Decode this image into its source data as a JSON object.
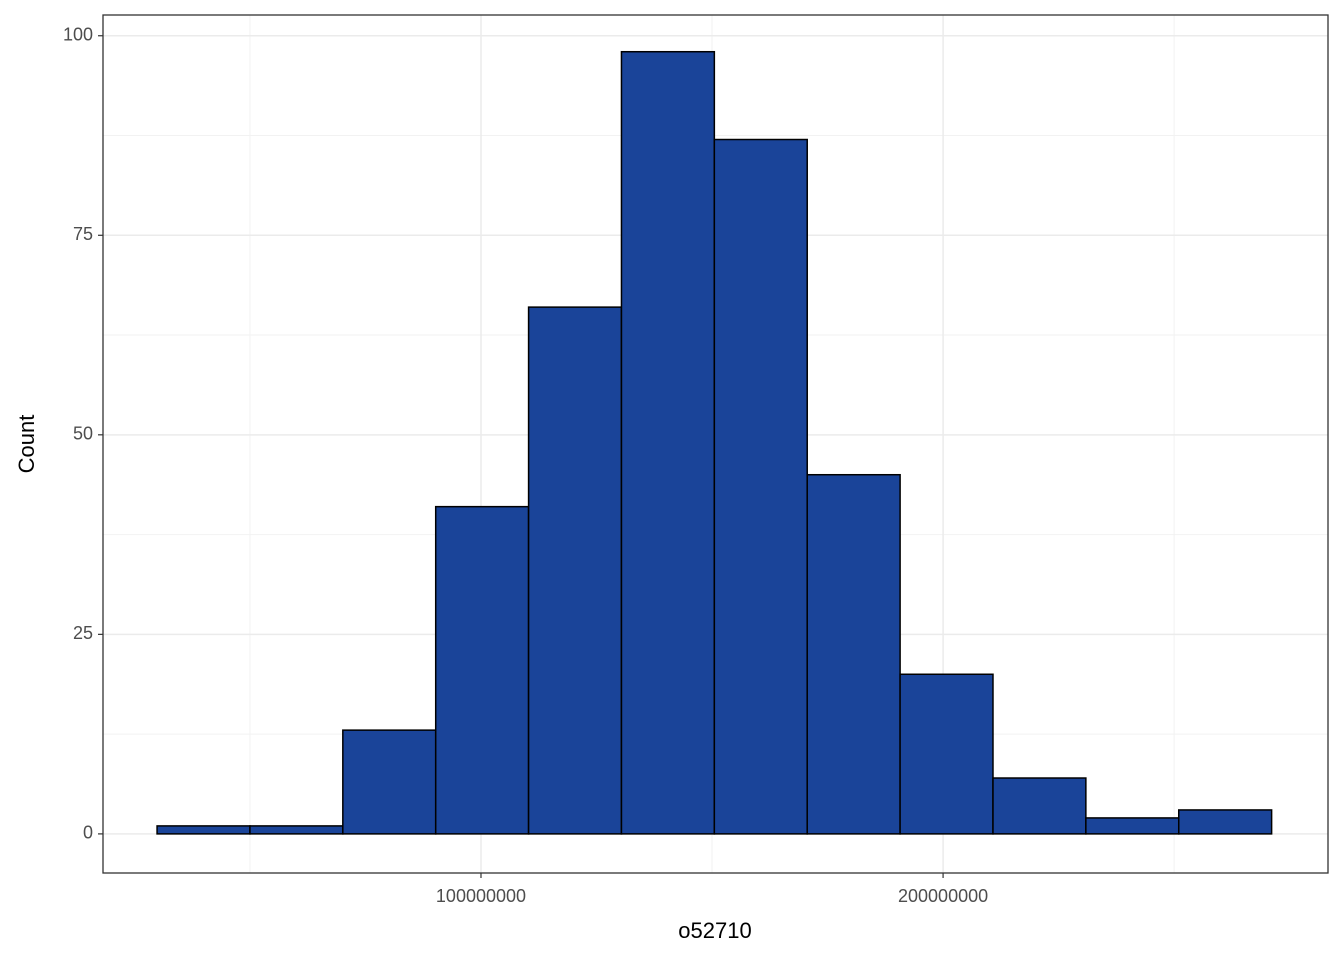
{
  "chart_data": {
    "type": "histogram",
    "x_label": "o52710",
    "y_label": "Count",
    "bins": [
      29900000,
      50000000,
      70100000,
      90200000,
      110300000,
      130400000,
      150500000,
      170600000,
      190700000,
      210800000,
      230900000,
      251000000,
      271100000
    ],
    "values": [
      1,
      1,
      13,
      41,
      66,
      98,
      87,
      45,
      20,
      7,
      2,
      3
    ],
    "color": "#1a4499",
    "edge_color": "#000000",
    "xlim": [
      18200000,
      283300000
    ],
    "xticks": [
      100000000,
      200000000
    ],
    "ylim": [
      -4.9,
      102.6
    ],
    "yticks": [
      0,
      25,
      50,
      75,
      100
    ],
    "grid": true,
    "minor_grid": true
  }
}
